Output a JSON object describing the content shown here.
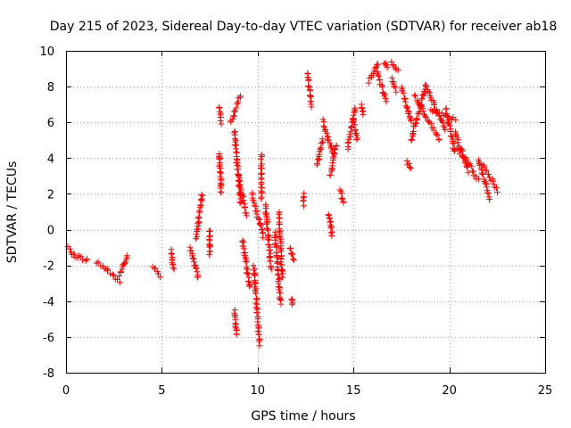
{
  "chart_data": {
    "type": "scatter",
    "title": "Day 215 of 2023, Sidereal Day-to-day VTEC variation (SDTVAR) for receiver ab18",
    "xlabel": "GPS time / hours",
    "ylabel": "SDTVAR / TECUs",
    "xlim": [
      0,
      25
    ],
    "ylim": [
      -8,
      10
    ],
    "xticks": [
      0,
      5,
      10,
      15,
      20,
      25
    ],
    "yticks": [
      -8,
      -6,
      -4,
      -2,
      0,
      2,
      4,
      6,
      8,
      10
    ],
    "grid": true,
    "marker": "plus",
    "color": "#ff0000",
    "series": [
      {
        "name": "SDTVAR",
        "segments": [
          {
            "x0": 0.1,
            "x1": 0.4,
            "y0": -1.0,
            "y1": -1.4
          },
          {
            "x0": 0.4,
            "x1": 1.1,
            "y0": -1.4,
            "y1": -1.7
          },
          {
            "x0": 1.6,
            "x1": 2.2,
            "y0": -1.8,
            "y1": -2.3
          },
          {
            "x0": 2.2,
            "x1": 2.8,
            "y0": -2.3,
            "y1": -3.0
          },
          {
            "x0": 2.8,
            "x1": 3.2,
            "y0": -2.6,
            "y1": -1.4
          },
          {
            "x0": 4.5,
            "x1": 4.9,
            "y0": -2.0,
            "y1": -2.6
          },
          {
            "x0": 5.5,
            "x1": 5.6,
            "y0": -1.2,
            "y1": -2.2
          },
          {
            "x0": 6.5,
            "x1": 6.9,
            "y0": -1.0,
            "y1": -2.7
          },
          {
            "x0": 6.8,
            "x1": 7.1,
            "y0": -0.5,
            "y1": 2.0
          },
          {
            "x0": 7.5,
            "x1": 7.5,
            "y0": -0.1,
            "y1": -1.4
          },
          {
            "x0": 8.0,
            "x1": 8.1,
            "y0": 6.9,
            "y1": 6.0
          },
          {
            "x0": 8.0,
            "x1": 8.1,
            "y0": 4.3,
            "y1": 2.0
          },
          {
            "x0": 8.6,
            "x1": 9.1,
            "y0": 6.0,
            "y1": 7.5
          },
          {
            "x0": 8.8,
            "x1": 9.1,
            "y0": 5.5,
            "y1": 1.5
          },
          {
            "x0": 9.0,
            "x1": 9.4,
            "y0": 3.0,
            "y1": 0.8
          },
          {
            "x0": 8.8,
            "x1": 8.9,
            "y0": -4.5,
            "y1": -5.9
          },
          {
            "x0": 9.2,
            "x1": 9.6,
            "y0": -0.6,
            "y1": -3.2
          },
          {
            "x0": 9.8,
            "x1": 10.1,
            "y0": -2.0,
            "y1": -6.4
          },
          {
            "x0": 9.7,
            "x1": 10.3,
            "y0": 2.0,
            "y1": -0.4
          },
          {
            "x0": 10.2,
            "x1": 10.2,
            "y0": 4.2,
            "y1": 1.8
          },
          {
            "x0": 10.4,
            "x1": 10.7,
            "y0": 1.4,
            "y1": -2.2
          },
          {
            "x0": 10.9,
            "x1": 11.2,
            "y0": -0.2,
            "y1": -4.1
          },
          {
            "x0": 11.1,
            "x1": 11.3,
            "y0": 1.0,
            "y1": -2.7
          },
          {
            "x0": 11.7,
            "x1": 11.9,
            "y0": -1.0,
            "y1": -1.7
          },
          {
            "x0": 11.8,
            "x1": 11.8,
            "y0": -3.9,
            "y1": -4.1
          },
          {
            "x0": 12.4,
            "x1": 12.4,
            "y0": 2.0,
            "y1": 1.4
          },
          {
            "x0": 12.6,
            "x1": 12.8,
            "y0": 8.8,
            "y1": 6.9
          },
          {
            "x0": 13.1,
            "x1": 13.4,
            "y0": 3.6,
            "y1": 5.1
          },
          {
            "x0": 13.4,
            "x1": 13.9,
            "y0": 6.1,
            "y1": 4.3
          },
          {
            "x0": 13.7,
            "x1": 13.9,
            "y0": 0.9,
            "y1": -0.3
          },
          {
            "x0": 13.8,
            "x1": 14.1,
            "y0": 3.0,
            "y1": 4.8
          },
          {
            "x0": 14.3,
            "x1": 14.5,
            "y0": 2.2,
            "y1": 1.4
          },
          {
            "x0": 14.7,
            "x1": 15.1,
            "y0": 4.6,
            "y1": 6.8
          },
          {
            "x0": 15.0,
            "x1": 15.2,
            "y0": 6.2,
            "y1": 5.0
          },
          {
            "x0": 15.4,
            "x1": 15.5,
            "y0": 7.0,
            "y1": 6.5
          },
          {
            "x0": 15.8,
            "x1": 16.3,
            "y0": 8.3,
            "y1": 9.3
          },
          {
            "x0": 16.2,
            "x1": 16.7,
            "y0": 9.0,
            "y1": 7.2
          },
          {
            "x0": 16.6,
            "x1": 16.8,
            "y0": 9.3,
            "y1": 9.1
          },
          {
            "x0": 17.0,
            "x1": 17.2,
            "y0": 8.5,
            "y1": 7.8
          },
          {
            "x0": 17.0,
            "x1": 17.3,
            "y0": 9.4,
            "y1": 8.9
          },
          {
            "x0": 17.5,
            "x1": 18.0,
            "y0": 8.0,
            "y1": 6.0
          },
          {
            "x0": 17.8,
            "x1": 18.0,
            "y0": 3.8,
            "y1": 3.5
          },
          {
            "x0": 18.0,
            "x1": 18.8,
            "y0": 5.0,
            "y1": 8.1
          },
          {
            "x0": 18.2,
            "x1": 19.5,
            "y0": 7.5,
            "y1": 5.0
          },
          {
            "x0": 18.8,
            "x1": 19.8,
            "y0": 7.9,
            "y1": 5.6
          },
          {
            "x0": 19.0,
            "x1": 20.3,
            "y0": 6.7,
            "y1": 6.2
          },
          {
            "x0": 19.8,
            "x1": 20.3,
            "y0": 6.8,
            "y1": 4.3
          },
          {
            "x0": 20.3,
            "x1": 21.0,
            "y0": 5.4,
            "y1": 3.3
          },
          {
            "x0": 20.4,
            "x1": 21.0,
            "y0": 4.5,
            "y1": 3.7
          },
          {
            "x0": 21.0,
            "x1": 21.5,
            "y0": 3.7,
            "y1": 2.8
          },
          {
            "x0": 21.5,
            "x1": 22.1,
            "y0": 4.0,
            "y1": 1.8
          },
          {
            "x0": 21.8,
            "x1": 22.5,
            "y0": 3.6,
            "y1": 2.2
          }
        ]
      }
    ]
  }
}
